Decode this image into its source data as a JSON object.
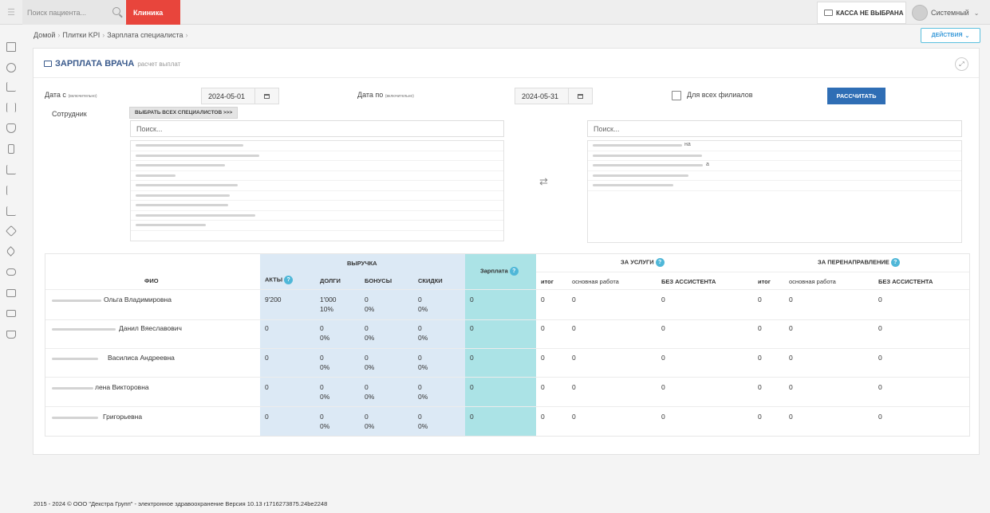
{
  "topbar": {
    "search_placeholder": "Поиск пациента...",
    "clinic_label": "Клиника",
    "kassa_label": "КАССА НЕ ВЫБРАНА",
    "user_name": "Системный"
  },
  "breadcrumb": {
    "items": [
      "Домой",
      "Плитки KPI",
      "Зарплата специалиста"
    ]
  },
  "actions_label": "ДЕЙСТВИЯ",
  "panel": {
    "title": "ЗАРПЛАТА ВРАЧА",
    "subtitle": "расчет выплат"
  },
  "form": {
    "date_from_label": "Дата с",
    "date_from_note": "(включительно)",
    "date_from_value": "2024-05-01",
    "date_to_label": "Дата по",
    "date_to_note": "(включительно)",
    "date_to_value": "2024-05-31",
    "all_branches_label": "Для всех филиалов",
    "calc_label": "РАССЧИТАТЬ",
    "employee_label": "Сотрудник",
    "select_all_label": "ВЫБРАТЬ ВСЕХ СПЕЦИАЛИСТОВ >>>",
    "search_left_placeholder": "Поиск...",
    "search_right_placeholder": "Поиск...",
    "right_list_fragments": [
      "на",
      "",
      "а",
      "",
      ""
    ]
  },
  "table": {
    "headers": {
      "fio": "ФИО",
      "revenue": "ВЫРУЧКА",
      "acts": "АКТЫ",
      "debts": "ДОЛГИ",
      "bonuses": "БОНУСЫ",
      "discounts": "СКИДКИ",
      "salary": "Зарплата",
      "for_services": "ЗА УСЛУГИ",
      "for_referral": "ЗА ПЕРЕНАПРАВЛЕНИЕ",
      "total": "итог",
      "main_work": "основная работа",
      "no_assistant": "БЕЗ АССИСТЕНТА"
    },
    "rows": [
      {
        "name": "Ольга Владимировна",
        "acts": "9'200",
        "debts": "1'000",
        "debts_pct": "10%",
        "bonuses": "0",
        "bonuses_pct": "0%",
        "discounts": "0",
        "discounts_pct": "0%",
        "salary": "0",
        "s_total": "0",
        "s_main": "0",
        "s_noasst": "0",
        "r_total": "0",
        "r_main": "0",
        "r_noasst": "0"
      },
      {
        "name": "Данил Вяеславович",
        "acts": "0",
        "debts": "0",
        "debts_pct": "0%",
        "bonuses": "0",
        "bonuses_pct": "0%",
        "discounts": "0",
        "discounts_pct": "0%",
        "salary": "0",
        "s_total": "0",
        "s_main": "0",
        "s_noasst": "0",
        "r_total": "0",
        "r_main": "0",
        "r_noasst": "0"
      },
      {
        "name": "Василиса Андреевна",
        "acts": "0",
        "debts": "0",
        "debts_pct": "0%",
        "bonuses": "0",
        "bonuses_pct": "0%",
        "discounts": "0",
        "discounts_pct": "0%",
        "salary": "0",
        "s_total": "0",
        "s_main": "0",
        "s_noasst": "0",
        "r_total": "0",
        "r_main": "0",
        "r_noasst": "0"
      },
      {
        "name": "лена Викторовна",
        "acts": "0",
        "debts": "0",
        "debts_pct": "0%",
        "bonuses": "0",
        "bonuses_pct": "0%",
        "discounts": "0",
        "discounts_pct": "0%",
        "salary": "0",
        "s_total": "0",
        "s_main": "0",
        "s_noasst": "0",
        "r_total": "0",
        "r_main": "0",
        "r_noasst": "0"
      },
      {
        "name": "Григорьевна",
        "acts": "0",
        "debts": "0",
        "debts_pct": "0%",
        "bonuses": "0",
        "bonuses_pct": "0%",
        "discounts": "0",
        "discounts_pct": "0%",
        "salary": "0",
        "s_total": "0",
        "s_main": "0",
        "s_noasst": "0",
        "r_total": "0",
        "r_main": "0",
        "r_noasst": "0"
      }
    ]
  },
  "footer": "2015 - 2024 © ООО \"Декстра Групп\" - электронное здравоохранение Версия 10.13 r1716273875.24be2248",
  "colors": {
    "accent": "#2f6eb5",
    "clinic": "#e8453c",
    "revenue_bg": "#dce9f5",
    "salary_bg": "#abe3e6",
    "help": "#4fb7d8"
  }
}
